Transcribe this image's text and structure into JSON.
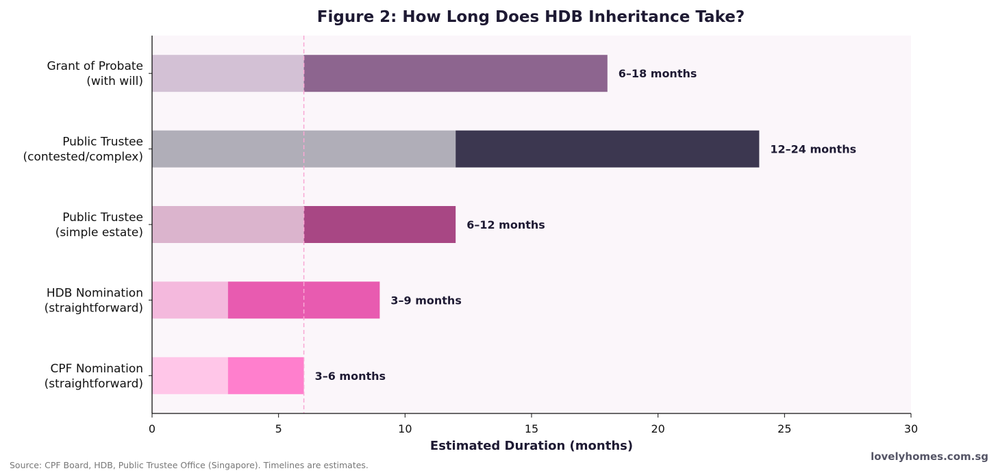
{
  "chart_data": {
    "type": "bar",
    "orientation": "horizontal",
    "stacked": true,
    "title": "Figure 2: How Long Does HDB Inheritance Take?",
    "xlabel": "Estimated Duration (months)",
    "ylabel": "",
    "xlim": [
      0,
      30
    ],
    "xticks": [
      0,
      5,
      10,
      15,
      20,
      25,
      30
    ],
    "grid": false,
    "reference_line": {
      "x": 6,
      "style": "dashed",
      "color": "#f9a8d4"
    },
    "categories": [
      [
        "Grant of Probate",
        "(with will)"
      ],
      [
        "Public Trustee",
        "(contested/complex)"
      ],
      [
        "Public Trustee",
        "(simple estate)"
      ],
      [
        "HDB Nomination",
        "(straightforward)"
      ],
      [
        "CPF Nomination",
        "(straightforward)"
      ]
    ],
    "series": [
      {
        "values": [
          6,
          12,
          6,
          3,
          3
        ]
      },
      {
        "values": [
          12,
          12,
          6,
          6,
          3
        ]
      }
    ],
    "data_labels": [
      "6–18 months",
      "12–24 months",
      "6–12 months",
      "3–9 months",
      "3–6 months"
    ],
    "colors": {
      "range_end": [
        "#8d658f",
        "#3c3750",
        "#a84784",
        "#e85bb0",
        "#ff7fcd"
      ],
      "range_start": [
        "#d3c1d5",
        "#b0aeb8",
        "#dbb4cd",
        "#f4b9dd",
        "#ffc6e8"
      ],
      "plot_background": "#fbf6fa",
      "text": "#1e1a33"
    }
  },
  "footer": {
    "source": "Source: CPF Board, HDB, Public Trustee Office (Singapore). Timelines are estimates.",
    "brand": "lovelyhomes.com.sg"
  }
}
